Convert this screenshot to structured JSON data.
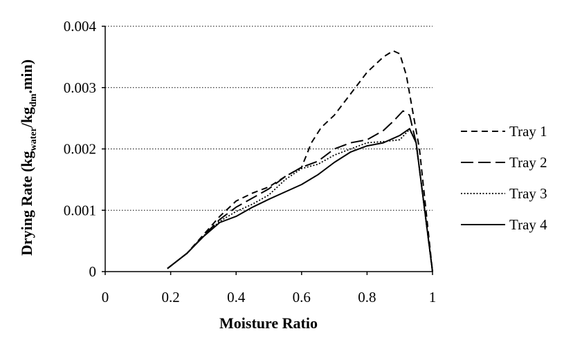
{
  "chart_data": {
    "type": "line",
    "xlabel": "Moisture Ratio",
    "ylabel": {
      "main": "Drying Rate (kg",
      "sub1": "water",
      "mid": "/kg",
      "sub2": "dm",
      "end": ".min)"
    },
    "xlim": [
      0,
      1
    ],
    "ylim": [
      0,
      0.004
    ],
    "xticks": [
      "0",
      "0.2",
      "0.4",
      "0.6",
      "0.8",
      "1"
    ],
    "yticks": [
      "0",
      "0.001",
      "0.002",
      "0.003",
      "0.004"
    ],
    "ytick_values": [
      0,
      0.001,
      0.002,
      0.003,
      0.004
    ],
    "xtick_values": [
      0,
      0.2,
      0.4,
      0.6,
      0.8,
      1
    ],
    "grid": "horizontal-dotted",
    "legend_position": "right",
    "series": [
      {
        "name": "Tray 1",
        "dash": "dashed",
        "x": [
          0.19,
          0.25,
          0.3,
          0.35,
          0.4,
          0.45,
          0.5,
          0.55,
          0.6,
          0.63,
          0.66,
          0.7,
          0.75,
          0.8,
          0.85,
          0.88,
          0.9,
          0.92,
          0.94,
          0.96,
          1.0
        ],
        "y": [
          5e-05,
          0.0003,
          0.0006,
          0.0009,
          0.00115,
          0.00128,
          0.00138,
          0.00155,
          0.0017,
          0.0021,
          0.00235,
          0.00255,
          0.0029,
          0.00325,
          0.0035,
          0.0036,
          0.00355,
          0.0032,
          0.0026,
          0.002,
          0.0
        ]
      },
      {
        "name": "Tray 2",
        "dash": "longdash",
        "x": [
          0.19,
          0.25,
          0.3,
          0.35,
          0.4,
          0.45,
          0.5,
          0.55,
          0.6,
          0.65,
          0.7,
          0.75,
          0.8,
          0.85,
          0.88,
          0.91,
          0.93,
          0.95,
          1.0
        ],
        "y": [
          5e-05,
          0.0003,
          0.00058,
          0.00085,
          0.00105,
          0.0012,
          0.00135,
          0.00155,
          0.0017,
          0.0018,
          0.002,
          0.0021,
          0.00215,
          0.0023,
          0.00245,
          0.00262,
          0.00255,
          0.0021,
          0.0
        ]
      },
      {
        "name": "Tray 3",
        "dash": "dotted",
        "x": [
          0.19,
          0.25,
          0.3,
          0.35,
          0.4,
          0.45,
          0.5,
          0.55,
          0.6,
          0.65,
          0.7,
          0.75,
          0.8,
          0.85,
          0.9,
          0.93,
          0.95,
          1.0
        ],
        "y": [
          5e-05,
          0.0003,
          0.00058,
          0.00082,
          0.00098,
          0.0011,
          0.00125,
          0.0015,
          0.00168,
          0.00175,
          0.0019,
          0.002,
          0.0021,
          0.00212,
          0.00215,
          0.00232,
          0.0021,
          0.0
        ]
      },
      {
        "name": "Tray 4",
        "dash": "solid",
        "x": [
          0.19,
          0.25,
          0.3,
          0.35,
          0.4,
          0.45,
          0.5,
          0.55,
          0.6,
          0.65,
          0.7,
          0.75,
          0.8,
          0.85,
          0.9,
          0.93,
          0.95,
          1.0
        ],
        "y": [
          5e-05,
          0.0003,
          0.00057,
          0.0008,
          0.0009,
          0.00105,
          0.00118,
          0.0013,
          0.00142,
          0.00158,
          0.00178,
          0.00195,
          0.00205,
          0.0021,
          0.00222,
          0.00233,
          0.0021,
          0.0
        ]
      }
    ]
  }
}
